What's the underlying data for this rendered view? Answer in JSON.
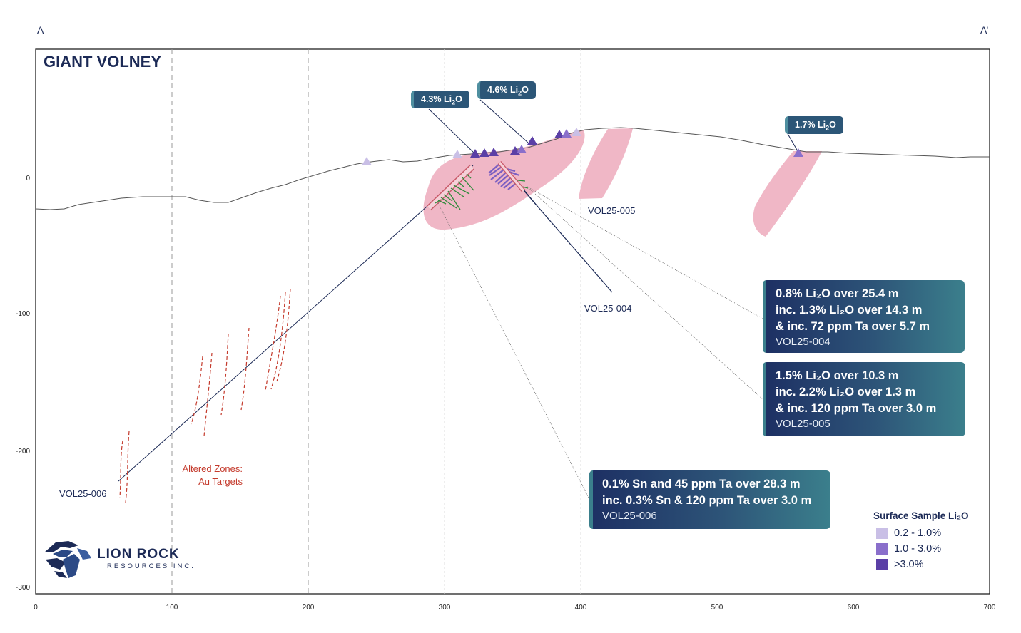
{
  "title": "GIANT VOLNEY",
  "section_labels": {
    "start": "A",
    "end": "A’"
  },
  "axes": {
    "x_ticks": [
      "0",
      "100",
      "200",
      "300",
      "400",
      "500",
      "600",
      "700"
    ],
    "y_ticks": [
      "0",
      "-100",
      "-200",
      "-300"
    ]
  },
  "drillholes": {
    "vol25_004": "VOL25-004",
    "vol25_005": "VOL25-005",
    "vol25_006": "VOL25-006"
  },
  "altered_zones": {
    "line1": "Altered Zones:",
    "line2": "Au Targets"
  },
  "surface_tags": [
    {
      "label_pre": "4.3% Li",
      "sub": "2",
      "label_post": "O"
    },
    {
      "label_pre": "4.6% Li",
      "sub": "2",
      "label_post": "O"
    },
    {
      "label_pre": "1.7% Li",
      "sub": "2",
      "label_post": "O"
    }
  ],
  "callouts": {
    "vol004": {
      "lines": [
        "0.8% Li₂O over 25.4 m",
        "inc. 1.3% Li₂O over 14.3 m",
        "& inc. 72 ppm Ta over 5.7 m"
      ],
      "hole": "VOL25-004"
    },
    "vol005": {
      "lines": [
        "1.5% Li₂O over 10.3 m",
        "inc. 2.2% Li₂O over 1.3 m",
        "& inc. 120 ppm Ta over 3.0 m"
      ],
      "hole": "VOL25-005"
    },
    "vol006": {
      "lines": [
        "0.1% Sn and 45 ppm Ta over 28.3 m",
        "inc. 0.3% Sn & 120 ppm Ta over 3.0 m"
      ],
      "hole": "VOL25-006"
    }
  },
  "legend": {
    "title": "Surface Sample Li₂O",
    "items": [
      {
        "label": "0.2 - 1.0%",
        "color": "#c9bfe6"
      },
      {
        "label": "1.0 - 3.0%",
        "color": "#8a6fcb"
      },
      {
        "label": ">3.0%",
        "color": "#5b3fa6"
      }
    ]
  },
  "logo": {
    "name": "LION ROCK",
    "sub": "RESOURCES INC."
  },
  "colors": {
    "pegmatite": "#f0b7c6",
    "navy": "#1c2a56",
    "altered": "#c43a2c",
    "callout_start": "#1d2f63",
    "callout_end": "#3b7f8c"
  }
}
